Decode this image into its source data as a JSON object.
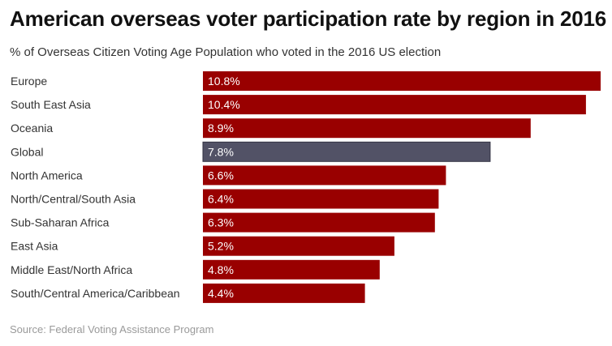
{
  "header": {
    "title": "American overseas voter participation rate by region in 2016",
    "subtitle": "% of Overseas Citizen Voting Age Population who voted in the 2016 US election"
  },
  "footer": {
    "source": "Source: Federal Voting Assistance Program"
  },
  "colors": {
    "bar": "#990000",
    "highlight_bar": "#525266",
    "highlight_border": "#333344"
  },
  "chart_data": {
    "type": "bar",
    "orientation": "horizontal",
    "title": "American overseas voter participation rate by region in 2016",
    "subtitle": "% of Overseas Citizen Voting Age Population who voted in the 2016 US election",
    "categories": [
      "Europe",
      "South East Asia",
      "Oceania",
      "Global",
      "North America",
      "North/Central/South Asia",
      "Sub-Saharan Africa",
      "East Asia",
      "Middle East/North Africa",
      "South/Central America/Caribbean"
    ],
    "values": [
      10.8,
      10.4,
      8.9,
      7.8,
      6.6,
      6.4,
      6.3,
      5.2,
      4.8,
      4.4
    ],
    "value_labels": [
      "10.8%",
      "10.4%",
      "8.9%",
      "7.8%",
      "6.6%",
      "6.4%",
      "6.3%",
      "5.2%",
      "4.8%",
      "4.4%"
    ],
    "highlight": "Global",
    "xlim": [
      0,
      10.8
    ],
    "grid": false,
    "legend": "none"
  }
}
